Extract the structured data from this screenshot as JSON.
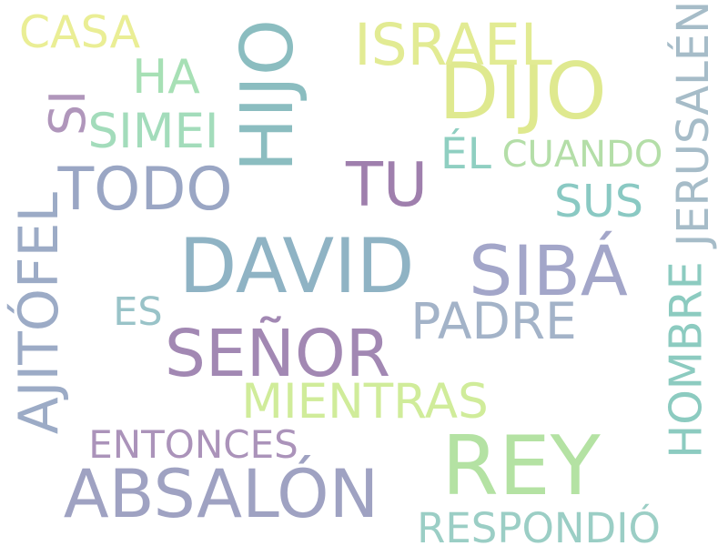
{
  "words": [
    {
      "text": "DAVID",
      "color": "#8fb3c4"
    },
    {
      "text": "SEÑOR",
      "color": "#a288b3"
    },
    {
      "text": "ABSALÓN",
      "color": "#9fa2c2"
    },
    {
      "text": "REY",
      "color": "#b4e2a3"
    },
    {
      "text": "TODO",
      "color": "#9aa6c4"
    },
    {
      "text": "SIBÁ",
      "color": "#a3a6c9"
    },
    {
      "text": "TU",
      "color": "#9f7fad"
    },
    {
      "text": "DIJO",
      "color": "#dfe98f"
    },
    {
      "text": "HIJO",
      "color": "#8bbdc0"
    },
    {
      "text": "PADRE",
      "color": "#a3b3c8"
    },
    {
      "text": "MIENTRAS",
      "color": "#d0ec9a"
    },
    {
      "text": "AJITÓFEL",
      "color": "#9cabc6"
    },
    {
      "text": "HOMBRE",
      "color": "#8ccbc0"
    },
    {
      "text": "RESPONDIÓ",
      "color": "#9bcec5"
    },
    {
      "text": "ENTONCES",
      "color": "#ab93ba"
    },
    {
      "text": "ISRAEL",
      "color": "#e2eb93"
    },
    {
      "text": "CASA",
      "color": "#eaee95"
    },
    {
      "text": "JERUSALÉN",
      "color": "#a6bcc8"
    },
    {
      "text": "CUANDO",
      "color": "#b4dea8"
    },
    {
      "text": "SUS",
      "color": "#8ac9c3"
    },
    {
      "text": "SIMEI",
      "color": "#a3dcbb"
    },
    {
      "text": "HA",
      "color": "#a7e0b5"
    },
    {
      "text": "ÉL",
      "color": "#8fcfc1"
    },
    {
      "text": "ES",
      "color": "#99c3c8"
    },
    {
      "text": "SI",
      "color": "#b096bb"
    }
  ]
}
